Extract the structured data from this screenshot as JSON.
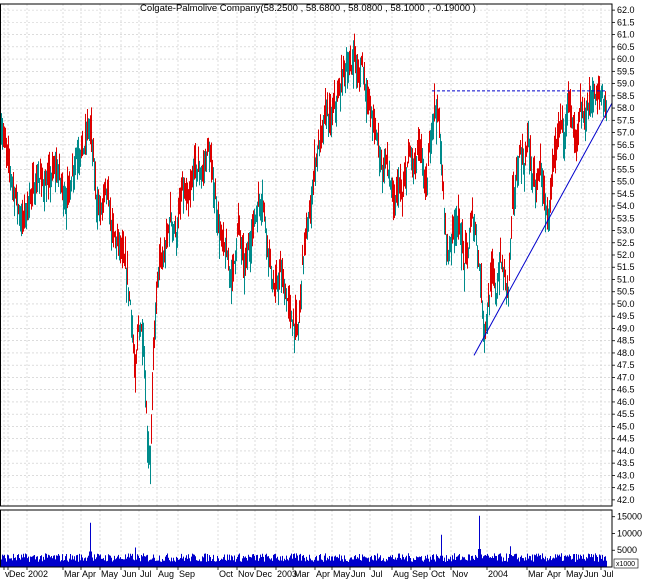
{
  "chart_data": [
    {
      "type": "candlestick",
      "title": "Colgate-Palmolive Company(58.2500 , 58.6800 , 58.0800 , 58.1000 , -0.19000 )",
      "ylim": [
        41.75,
        62.25
      ],
      "y_ticks": [
        42.0,
        42.5,
        43.0,
        43.5,
        44.0,
        44.5,
        45.0,
        45.5,
        46.0,
        46.5,
        47.0,
        47.5,
        48.0,
        48.5,
        49.0,
        49.5,
        50.0,
        50.5,
        51.0,
        51.5,
        52.0,
        52.5,
        53.0,
        53.5,
        54.0,
        54.5,
        55.0,
        55.5,
        56.0,
        56.5,
        57.0,
        57.5,
        58.0,
        58.5,
        59.0,
        59.5,
        60.0,
        60.5,
        61.0,
        61.5,
        62.0
      ],
      "x_labels": [
        "v",
        "Dec",
        "2002",
        "Mar",
        "Apr",
        "May",
        "Jun",
        "Jul",
        "Aug",
        "Sep",
        "Oct",
        "Nov",
        "Dec",
        "2003",
        "Mar",
        "Apr",
        "May",
        "Jun",
        "Jul",
        "Aug",
        "Sep",
        "Oct",
        "Nov",
        "2004",
        "Mar",
        "Apr",
        "May",
        "Jun",
        "Jul"
      ],
      "price_path": [
        [
          0,
          57.5
        ],
        [
          6,
          56.2
        ],
        [
          14,
          54.6
        ],
        [
          22,
          53.3
        ],
        [
          30,
          54.4
        ],
        [
          38,
          55.2
        ],
        [
          46,
          54.8
        ],
        [
          56,
          55.6
        ],
        [
          66,
          54.2
        ],
        [
          76,
          56.1
        ],
        [
          84,
          56.4
        ],
        [
          88,
          57.3
        ],
        [
          91,
          56.9
        ],
        [
          96,
          54.3
        ],
        [
          100,
          53.7
        ],
        [
          106,
          54.7
        ],
        [
          112,
          52.9
        ],
        [
          120,
          52.3
        ],
        [
          126,
          51.3
        ],
        [
          131,
          49.7
        ],
        [
          135,
          46.8
        ],
        [
          138,
          49.2
        ],
        [
          143,
          48.7
        ],
        [
          147,
          44.5
        ],
        [
          150,
          43.6
        ],
        [
          154,
          48.8
        ],
        [
          158,
          51.5
        ],
        [
          164,
          51.9
        ],
        [
          170,
          53.6
        ],
        [
          176,
          52.8
        ],
        [
          182,
          54.7
        ],
        [
          188,
          54.0
        ],
        [
          194,
          55.6
        ],
        [
          202,
          55.3
        ],
        [
          208,
          56.4
        ],
        [
          214,
          54.6
        ],
        [
          220,
          52.7
        ],
        [
          226,
          52.0
        ],
        [
          232,
          51.0
        ],
        [
          238,
          53.3
        ],
        [
          244,
          51.4
        ],
        [
          250,
          52.6
        ],
        [
          256,
          53.8
        ],
        [
          262,
          54.4
        ],
        [
          268,
          52.2
        ],
        [
          274,
          50.4
        ],
        [
          280,
          51.3
        ],
        [
          286,
          50.3
        ],
        [
          292,
          49.3
        ],
        [
          298,
          48.9
        ],
        [
          302,
          51.6
        ],
        [
          306,
          52.9
        ],
        [
          310,
          53.7
        ],
        [
          314,
          55.6
        ],
        [
          318,
          56.4
        ],
        [
          322,
          56.9
        ],
        [
          326,
          58.0
        ],
        [
          330,
          57.4
        ],
        [
          334,
          58.1
        ],
        [
          338,
          58.4
        ],
        [
          342,
          59.3
        ],
        [
          346,
          59.8
        ],
        [
          350,
          59.5
        ],
        [
          354,
          60.3
        ],
        [
          358,
          59.1
        ],
        [
          362,
          60.0
        ],
        [
          366,
          58.6
        ],
        [
          370,
          57.9
        ],
        [
          374,
          57.2
        ],
        [
          378,
          56.6
        ],
        [
          382,
          55.4
        ],
        [
          386,
          56.0
        ],
        [
          390,
          54.9
        ],
        [
          394,
          53.8
        ],
        [
          398,
          55.0
        ],
        [
          402,
          54.2
        ],
        [
          406,
          55.5
        ],
        [
          410,
          56.2
        ],
        [
          414,
          55.4
        ],
        [
          418,
          56.4
        ],
        [
          422,
          55.8
        ],
        [
          426,
          54.5
        ],
        [
          430,
          56.8
        ],
        [
          434,
          58.1
        ],
        [
          438,
          57.6
        ],
        [
          441,
          56.0
        ],
        [
          444,
          53.4
        ],
        [
          448,
          52.0
        ],
        [
          452,
          52.9
        ],
        [
          456,
          53.5
        ],
        [
          460,
          53.0
        ],
        [
          464,
          51.6
        ],
        [
          468,
          52.3
        ],
        [
          472,
          53.6
        ],
        [
          476,
          52.8
        ],
        [
          480,
          51.1
        ],
        [
          484,
          48.9
        ],
        [
          488,
          49.9
        ],
        [
          492,
          51.3
        ],
        [
          496,
          50.4
        ],
        [
          500,
          51.8
        ],
        [
          504,
          51.1
        ],
        [
          508,
          50.6
        ],
        [
          512,
          54.0
        ],
        [
          516,
          55.1
        ],
        [
          520,
          56.3
        ],
        [
          524,
          55.6
        ],
        [
          528,
          56.8
        ],
        [
          532,
          55.2
        ],
        [
          536,
          54.6
        ],
        [
          540,
          55.8
        ],
        [
          544,
          54.1
        ],
        [
          548,
          53.5
        ],
        [
          552,
          55.2
        ],
        [
          556,
          56.2
        ],
        [
          560,
          57.6
        ],
        [
          564,
          57.0
        ],
        [
          568,
          58.5
        ],
        [
          572,
          57.3
        ],
        [
          576,
          56.4
        ],
        [
          580,
          57.9
        ],
        [
          584,
          57.5
        ],
        [
          588,
          58.1
        ],
        [
          592,
          58.6
        ],
        [
          596,
          58.3
        ],
        [
          600,
          58.7
        ],
        [
          604,
          58.2
        ],
        [
          606,
          58.1
        ]
      ],
      "volume_axis": {
        "max": 17000,
        "ticks": [
          5000,
          10000,
          15000
        ],
        "unit_label": "x1000"
      },
      "volume_spikes": [
        [
          90,
          13200
        ],
        [
          135,
          5800
        ],
        [
          441,
          9600
        ],
        [
          479,
          15300
        ],
        [
          510,
          6200
        ]
      ],
      "trendlines": [
        {
          "kind": "resistance",
          "style": "dashed",
          "from": {
            "bar": 432,
            "price": 58.7
          },
          "to": {
            "bar": 606,
            "price": 58.7
          }
        },
        {
          "kind": "support",
          "style": "solid",
          "from": {
            "bar": 474,
            "price": 47.9
          },
          "to": {
            "bar": 612,
            "price": 58.2
          }
        }
      ],
      "colors": {
        "up": "#008b8b",
        "down": "#dd0000",
        "volume": "#0000cc",
        "trendline": "#0000cc",
        "grid": "#c8c8c8"
      },
      "grid": true
    }
  ]
}
